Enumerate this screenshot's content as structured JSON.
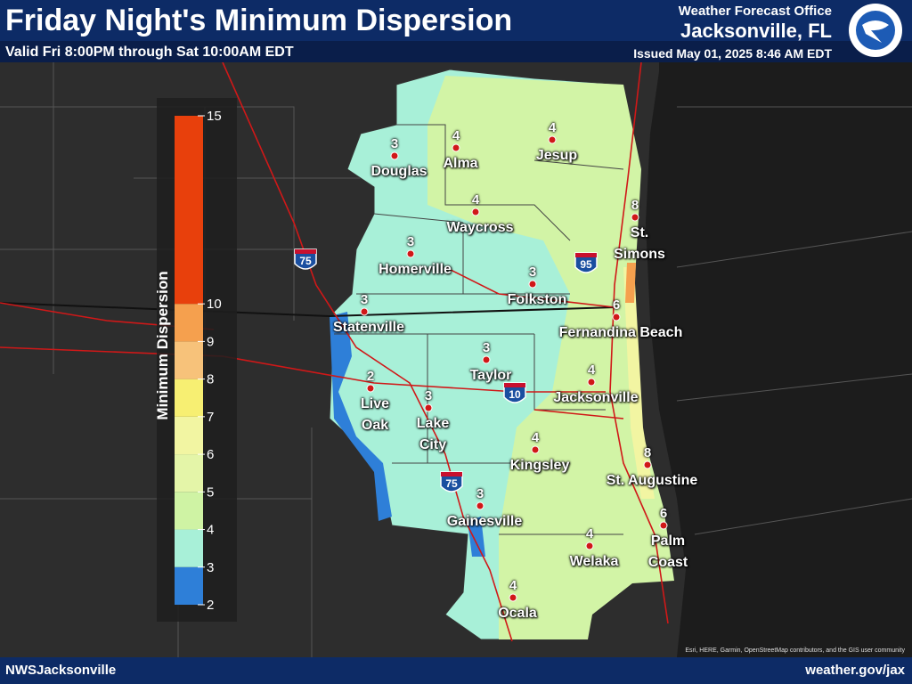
{
  "header": {
    "title": "Friday Night's Minimum Dispersion",
    "subtitle": "Valid Fri 8:00PM through Sat 10:00AM EDT",
    "office_line": "Weather Forecast Office",
    "office": "Jacksonville, FL",
    "issued": "Issued May 01, 2025 8:46 AM EDT"
  },
  "legend": {
    "title": "Minimum Dispersion",
    "ticks": [
      2,
      3,
      4,
      5,
      6,
      7,
      8,
      9,
      10,
      15
    ],
    "colors": [
      "#2e7fd8",
      "#a8f0d8",
      "#cff3a4",
      "#e4f5a8",
      "#f2f5a2",
      "#f7ef72",
      "#f7c27a",
      "#f5a04e",
      "#e8400c"
    ]
  },
  "cities": [
    {
      "name": "Douglas",
      "value": 3
    },
    {
      "name": "Alma",
      "value": 4
    },
    {
      "name": "Jesup",
      "value": 4
    },
    {
      "name": "Waycross",
      "value": 4
    },
    {
      "name": "St. Simons",
      "value": 8
    },
    {
      "name": "Homerville",
      "value": 3
    },
    {
      "name": "Folkston",
      "value": 3
    },
    {
      "name": "Statenville",
      "value": 3
    },
    {
      "name": "Fernandina Beach",
      "value": 6
    },
    {
      "name": "Taylor",
      "value": 3
    },
    {
      "name": "Live Oak",
      "value": 2
    },
    {
      "name": "Lake City",
      "value": 3
    },
    {
      "name": "Jacksonville",
      "value": 4
    },
    {
      "name": "Kingsley",
      "value": 4
    },
    {
      "name": "St. Augustine",
      "value": 8
    },
    {
      "name": "Gainesville",
      "value": 3
    },
    {
      "name": "Palm Coast",
      "value": 6
    },
    {
      "name": "Welaka",
      "value": 4
    },
    {
      "name": "Ocala",
      "value": 4
    }
  ],
  "highways": [
    "75",
    "95",
    "10",
    "75"
  ],
  "footer": {
    "left": "NWSJacksonville",
    "right": "weather.gov/jax",
    "attribution": "Esri, HERE, Garmin, OpenStreetMap contributors, and the GIS user community"
  }
}
